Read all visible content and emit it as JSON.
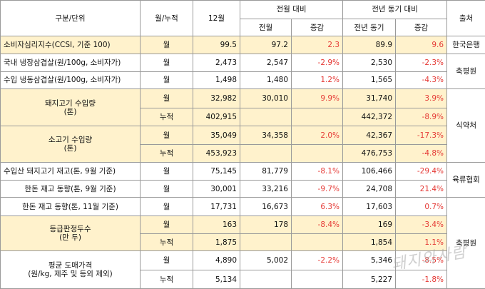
{
  "header": {
    "category": "구분/단위",
    "period": "월/누적",
    "month": "12월",
    "mom": "전월 대비",
    "yoy": "전년 동기 대비",
    "source": "출처",
    "prev_month": "전월",
    "change": "증감",
    "prev_year_same": "전년 동기",
    "change2": "증감"
  },
  "rows": {
    "cci": {
      "label": "소비자심리지수(CCSI, 기준 100)",
      "period": "월",
      "current": "99.5",
      "prev_month": "97.2",
      "mom_change": "2.3",
      "prev_year": "89.9",
      "yoy_change": "9.6",
      "source": "한국은행"
    },
    "frozen_domestic": {
      "label": "국내 냉장삼겹살(원/100g, 소비자가)",
      "period": "월",
      "current": "2,473",
      "prev_month": "2,547",
      "mom_change": "-2.9%",
      "prev_year": "2,530",
      "yoy_change": "-2.3%"
    },
    "frozen_import": {
      "label": "수입 냉동삼겹살(원/100g, 소비자가)",
      "period": "월",
      "current": "1,498",
      "prev_month": "1,480",
      "mom_change": "1.2%",
      "prev_year": "1,565",
      "yoy_change": "-4.3%"
    },
    "pork_import": {
      "label_line1": "돼지고기 수입량",
      "label_line2": "(톤)",
      "monthly": {
        "period": "월",
        "current": "32,982",
        "prev_month": "30,010",
        "mom_change": "9.9%",
        "prev_year": "31,740",
        "yoy_change": "3.9%"
      },
      "cumulative": {
        "period": "누적",
        "current": "402,915",
        "prev_year": "442,372",
        "yoy_change": "-8.9%"
      }
    },
    "beef_import": {
      "label_line1": "소고기 수입량",
      "label_line2": "(톤)",
      "monthly": {
        "period": "월",
        "current": "35,049",
        "prev_month": "34,358",
        "mom_change": "2.0%",
        "prev_year": "42,367",
        "yoy_change": "-17.3%"
      },
      "cumulative": {
        "period": "누적",
        "current": "453,923",
        "prev_year": "476,753",
        "yoy_change": "-4.8%"
      }
    },
    "import_source": "식약처",
    "import_pork_stock": {
      "label": "수입산 돼지고기 재고(톤, 9월 기준)",
      "period": "월",
      "current": "75,145",
      "prev_month": "81,779",
      "mom_change": "-8.1%",
      "prev_year": "106,466",
      "yoy_change": "-29.4%"
    },
    "stock_source": "육류협회",
    "hanwoo_stock_sep": {
      "label": "한돈 재고 동향(톤, 9월 기준)",
      "period": "월",
      "current": "30,001",
      "prev_month": "33,216",
      "mom_change": "-9.7%",
      "prev_year": "24,708",
      "yoy_change": "21.4%"
    },
    "hanwoo_stock_nov": {
      "label": "한돈 재고 동향(톤, 11월 기준)",
      "period": "월",
      "current": "17,731",
      "prev_month": "16,673",
      "mom_change": "6.3%",
      "prev_year": "17,603",
      "yoy_change": "0.7%"
    },
    "grade_heads": {
      "label_line1": "등급판정두수",
      "label_line2": "(만 두)",
      "monthly": {
        "period": "월",
        "current": "163",
        "prev_month": "178",
        "mom_change": "-8.4%",
        "prev_year": "169",
        "yoy_change": "-3.4%"
      },
      "cumulative": {
        "period": "누적",
        "current": "1,875",
        "prev_year": "1,854",
        "yoy_change": "1.1%"
      }
    },
    "wholesale": {
      "label_line1": "평균 도매가격",
      "label_line2": "(원/kg, 제주 및 등외 제외)",
      "monthly": {
        "period": "월",
        "current": "4,890",
        "prev_month": "5,002",
        "mom_change": "-2.2%",
        "prev_year": "5,346",
        "yoy_change": "-8.5%"
      },
      "cumulative": {
        "period": "누적",
        "current": "5,134",
        "prev_year": "5,227",
        "yoy_change": "-1.8%"
      }
    },
    "grade_source": "축평원"
  },
  "watermark": "돼지와사람",
  "colors": {
    "highlight": "#fff2cc",
    "negative": "#e53935",
    "border": "#9a9a9a"
  }
}
